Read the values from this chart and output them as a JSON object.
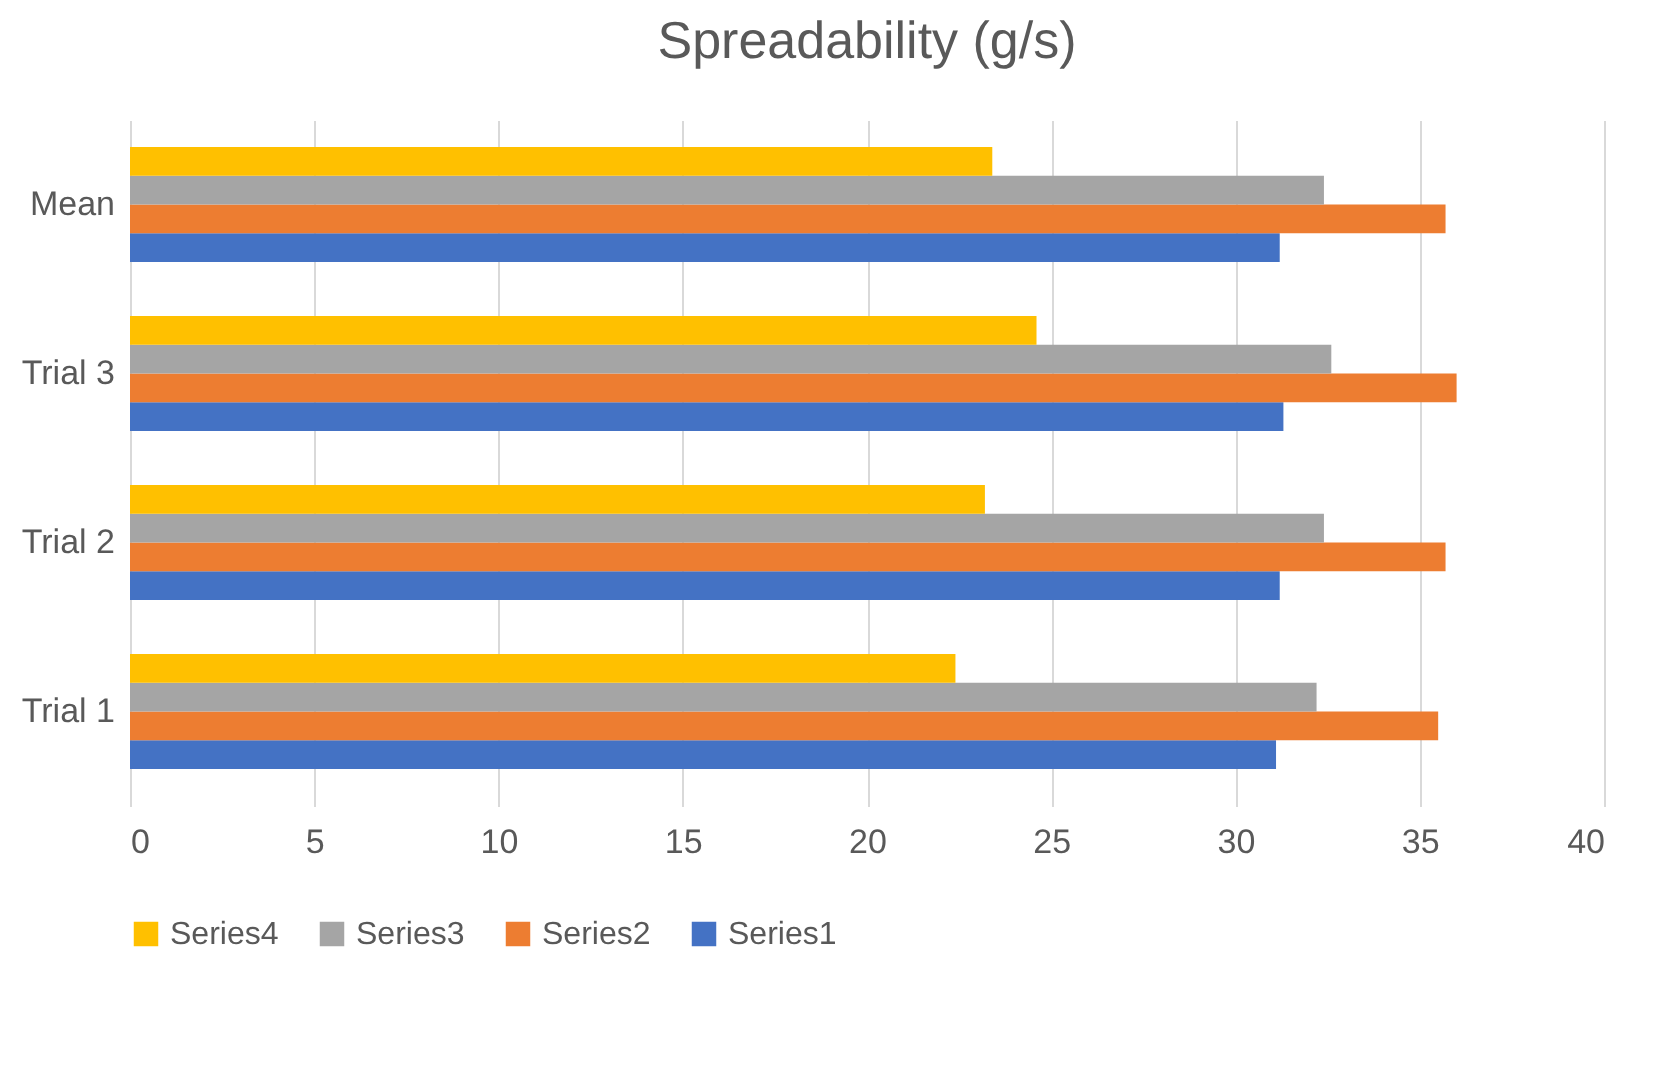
{
  "chart_data": {
    "type": "bar",
    "orientation": "horizontal",
    "title": "Spreadability (g/s)",
    "categories": [
      "Mean",
      "Trial 3",
      "Trial 2",
      "Trial 1"
    ],
    "series": [
      {
        "name": "Series1",
        "color": "#4472c4",
        "values": [
          31.2,
          31.3,
          31.2,
          31.1
        ]
      },
      {
        "name": "Series2",
        "color": "#ed7d31",
        "values": [
          35.7,
          36.0,
          35.7,
          35.5
        ]
      },
      {
        "name": "Series3",
        "color": "#a5a5a5",
        "values": [
          32.4,
          32.6,
          32.4,
          32.2
        ]
      },
      {
        "name": "Series4",
        "color": "#ffc000",
        "values": [
          23.4,
          24.6,
          23.2,
          22.4
        ]
      }
    ],
    "xlim": [
      0,
      40
    ],
    "xticks": [
      0,
      5,
      10,
      15,
      20,
      25,
      30,
      35,
      40
    ],
    "grid": "x",
    "legend": "bottom"
  }
}
